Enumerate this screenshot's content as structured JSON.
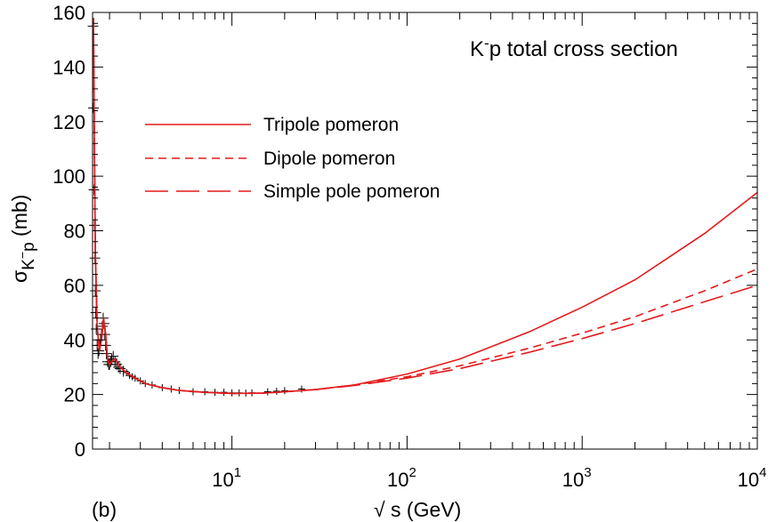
{
  "chart_data": {
    "type": "line",
    "title_parts": [
      "K",
      "-",
      "p total cross section"
    ],
    "xlabel": "√ s (GeV)",
    "ylabel_parts": [
      "σ",
      "K",
      "−",
      "p",
      " (mb)"
    ],
    "panel_label": "(b)",
    "xscale": "log",
    "xlim": [
      1.6,
      10000
    ],
    "ylim": [
      0,
      160
    ],
    "x_tick_labels": [
      {
        "value": 10,
        "base": "10",
        "exp": "1"
      },
      {
        "value": 100,
        "base": "10",
        "exp": "2"
      },
      {
        "value": 1000,
        "base": "10",
        "exp": "3"
      },
      {
        "value": 10000,
        "base": "10",
        "exp": "4"
      }
    ],
    "y_ticks": [
      0,
      20,
      40,
      60,
      80,
      100,
      120,
      140,
      160
    ],
    "grid": false,
    "legend_position": "upper-left",
    "colors": {
      "curve": "#e41a1c",
      "data": "#000000",
      "axis": "#000000"
    },
    "series": [
      {
        "name": "Tripole pomeron",
        "style": "solid",
        "x": [
          1.62,
          1.64,
          1.66,
          1.7,
          1.75,
          1.8,
          1.85,
          1.9,
          1.95,
          2.0,
          2.05,
          2.15,
          2.3,
          2.5,
          2.8,
          3.2,
          4,
          5,
          7,
          10,
          15,
          20,
          30,
          50,
          100,
          200,
          500,
          1000,
          2000,
          5000,
          10000
        ],
        "y": [
          158,
          110,
          72,
          45,
          36,
          40,
          48,
          42,
          33,
          31,
          32,
          33,
          30,
          28,
          26,
          24,
          22.5,
          21.5,
          20.8,
          20.4,
          20.5,
          21,
          21.8,
          23.5,
          27.5,
          33,
          43,
          52,
          62,
          79,
          94
        ]
      },
      {
        "name": "Dipole pomeron",
        "style": "dashed",
        "x": [
          1.62,
          1.64,
          1.66,
          1.7,
          1.75,
          1.8,
          1.85,
          1.9,
          1.95,
          2.0,
          2.05,
          2.15,
          2.3,
          2.5,
          2.8,
          3.2,
          4,
          5,
          7,
          10,
          15,
          20,
          30,
          50,
          100,
          200,
          500,
          1000,
          2000,
          5000,
          10000
        ],
        "y": [
          158,
          110,
          72,
          45,
          36,
          40,
          48,
          42,
          33,
          31,
          32,
          33,
          30,
          28,
          26,
          24,
          22.5,
          21.5,
          20.8,
          20.4,
          20.5,
          21,
          21.8,
          23.5,
          26.5,
          30.5,
          37,
          42.5,
          48.5,
          58,
          66
        ]
      },
      {
        "name": "Simple pole pomeron",
        "style": "longdash",
        "x": [
          1.62,
          1.64,
          1.66,
          1.7,
          1.75,
          1.8,
          1.85,
          1.9,
          1.95,
          2.0,
          2.05,
          2.15,
          2.3,
          2.5,
          2.8,
          3.2,
          4,
          5,
          7,
          10,
          15,
          20,
          30,
          50,
          100,
          200,
          500,
          1000,
          2000,
          5000,
          10000
        ],
        "y": [
          158,
          110,
          72,
          45,
          36,
          40,
          48,
          42,
          33,
          31,
          32,
          33,
          30,
          28,
          26,
          24,
          22.5,
          21.5,
          20.8,
          20.4,
          20.5,
          21,
          21.8,
          23.3,
          26,
          29.5,
          35.5,
          40.5,
          46,
          54,
          60
        ]
      }
    ],
    "measurements": {
      "name": "data",
      "x": [
        1.61,
        1.62,
        1.63,
        1.64,
        1.65,
        1.66,
        1.67,
        1.68,
        1.7,
        1.72,
        1.74,
        1.76,
        1.78,
        1.8,
        1.82,
        1.84,
        1.86,
        1.88,
        1.9,
        1.92,
        1.95,
        1.98,
        2.0,
        2.03,
        2.06,
        2.1,
        2.15,
        2.2,
        2.25,
        2.3,
        2.4,
        2.5,
        2.6,
        2.7,
        2.8,
        3.0,
        3.2,
        3.5,
        4.0,
        4.5,
        5.0,
        6.0,
        7.0,
        8.0,
        9.0,
        10.0,
        11.0,
        12.0,
        13.0,
        16.0,
        18.0,
        20.0,
        25.0
      ],
      "y": [
        155,
        125,
        95,
        82,
        70,
        58,
        50,
        44,
        38,
        35,
        36,
        38,
        40,
        42,
        45,
        48,
        46,
        42,
        38,
        35,
        32,
        31,
        31,
        32,
        33,
        34,
        32,
        31,
        30,
        29.5,
        28.5,
        28,
        27,
        26.5,
        26,
        25,
        24,
        23.5,
        22.5,
        22,
        21.5,
        21,
        21,
        20.8,
        20.8,
        20.6,
        20.6,
        20.5,
        20.6,
        21,
        21.2,
        21.4,
        22
      ]
    }
  }
}
